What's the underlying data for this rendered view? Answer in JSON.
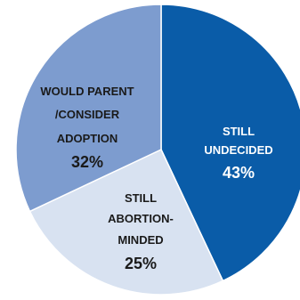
{
  "chart_data": {
    "type": "pie",
    "slices": [
      {
        "label_lines": [
          "STILL",
          "UNDECIDED"
        ],
        "percent_text": "43%",
        "value": 43,
        "color": "#0a5ca8",
        "text_color": "#ffffff"
      },
      {
        "label_lines": [
          "STILL",
          "ABORTION-",
          "MINDED"
        ],
        "percent_text": "25%",
        "value": 25,
        "color": "#d8e2f1",
        "text_color": "#1a1a1a"
      },
      {
        "label_lines": [
          "WOULD PARENT",
          "/CONSIDER",
          "ADOPTION"
        ],
        "percent_text": "32%",
        "value": 32,
        "color": "#7d9ccf",
        "text_color": "#1a1a1a"
      }
    ],
    "start": "top",
    "direction": "clockwise",
    "slice_border_color": "#ffffff",
    "title": "",
    "legend": "none"
  }
}
